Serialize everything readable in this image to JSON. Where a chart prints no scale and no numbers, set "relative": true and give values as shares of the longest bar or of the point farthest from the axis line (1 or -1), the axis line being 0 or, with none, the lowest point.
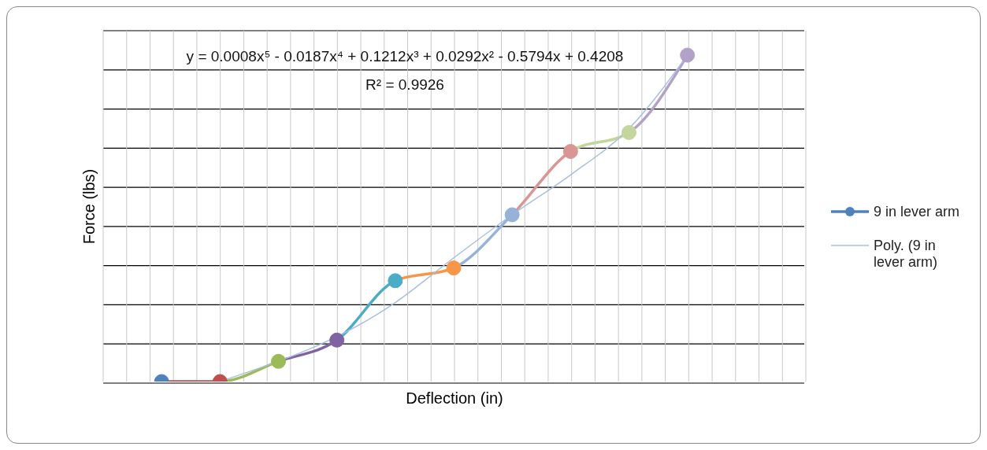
{
  "chart_data": {
    "type": "line",
    "relative": true,
    "xlabel": "Deflection (in)",
    "ylabel": "Force (lbs)",
    "categories": [
      null,
      null,
      null,
      null,
      null,
      null,
      null,
      null,
      null,
      null,
      null,
      null,
      null
    ],
    "series": [
      {
        "name": "9 in lever arm",
        "color": "#4f81bd",
        "marker": "circle",
        "values": [
          null,
          0,
          0,
          0.062,
          0.127,
          0.309,
          0.348,
          0.511,
          0.705,
          0.763,
          1,
          null,
          null
        ],
        "colors": [
          null,
          "#4f81bd",
          "#c0504d",
          "#9bbb59",
          "#8064a2",
          "#4bacc6",
          "#f79646",
          "#95b3d7",
          "#d99694",
          "#c3d69b",
          "#b3a2c7",
          null,
          null
        ]
      },
      {
        "name": "Poly. (9 in lever arm)",
        "type": "line",
        "color": "#a9bfe0",
        "marker": "none",
        "values": [
          null,
          null,
          0,
          null,
          null,
          0.242,
          0.379,
          0.511,
          0.633,
          0.775,
          1,
          null,
          null
        ]
      }
    ],
    "annotations": [
      "y = 0.0008x⁵ - 0.0187x⁴ + 0.1212x³ + 0.0292x² - 0.5794x + 0.4208",
      "R² = 0.9926"
    ],
    "grid": true,
    "legend": "right"
  }
}
